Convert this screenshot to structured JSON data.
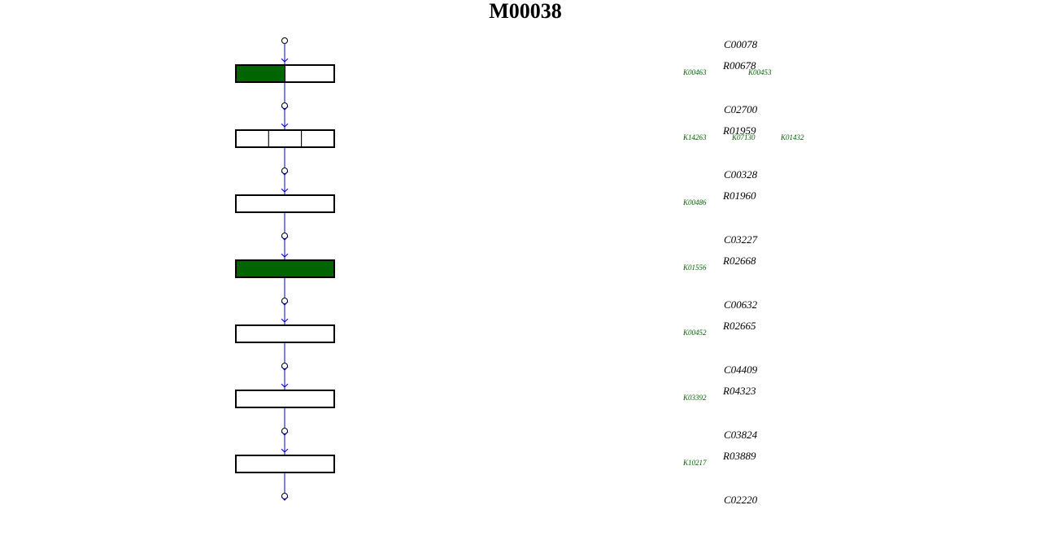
{
  "title": "M00038",
  "compounds": [
    "C00078",
    "C02700",
    "C00328",
    "C03227",
    "C00632",
    "C04409",
    "C03824",
    "C02220"
  ],
  "reactions": [
    {
      "id": "R00678",
      "orthologs": [
        "K00463",
        "K00453"
      ],
      "present": [
        true,
        false
      ]
    },
    {
      "id": "R01959",
      "orthologs": [
        "K14263",
        "K07130",
        "K01432"
      ],
      "present": [
        false,
        false,
        false
      ]
    },
    {
      "id": "R01960",
      "orthologs": [
        "K00486"
      ],
      "present": [
        false
      ]
    },
    {
      "id": "R02668",
      "orthologs": [
        "K01556"
      ],
      "present": [
        true
      ]
    },
    {
      "id": "R02665",
      "orthologs": [
        "K00452"
      ],
      "present": [
        false
      ]
    },
    {
      "id": "R04323",
      "orthologs": [
        "K03392"
      ],
      "present": [
        false
      ]
    },
    {
      "id": "R03889",
      "orthologs": [
        "K10217"
      ],
      "present": [
        false
      ]
    }
  ]
}
